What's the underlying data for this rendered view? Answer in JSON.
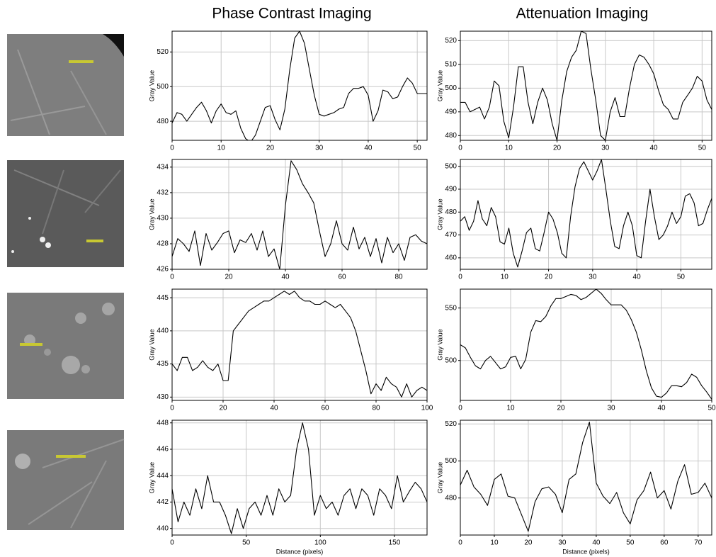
{
  "column_titles": [
    "Phase Contrast Imaging",
    "Attenuation Imaging"
  ],
  "chart_data": [
    {
      "type": "line",
      "y_label": "Gray Value",
      "color": "#000000",
      "grid": true,
      "xlim": [
        0,
        52
      ],
      "ylim": [
        469,
        532
      ],
      "xticks": [
        0,
        10,
        20,
        30,
        40,
        50
      ],
      "yticks": [
        480,
        500,
        520
      ],
      "x": [
        0,
        1,
        2,
        3,
        4,
        5,
        6,
        7,
        8,
        9,
        10,
        11,
        12,
        13,
        14,
        15,
        16,
        17,
        18,
        19,
        20,
        21,
        22,
        23,
        24,
        25,
        26,
        27,
        28,
        29,
        30,
        31,
        32,
        33,
        34,
        35,
        36,
        37,
        38,
        39,
        40,
        41,
        42,
        43,
        44,
        45,
        46,
        47,
        48,
        49,
        50,
        51,
        52
      ],
      "values": [
        479,
        485,
        484,
        480,
        484,
        488,
        491,
        486,
        479,
        486,
        490,
        485,
        484,
        486,
        476,
        470,
        468,
        472,
        480,
        488,
        489,
        481,
        475,
        487,
        510,
        528,
        532,
        525,
        510,
        495,
        484,
        483,
        484,
        485,
        487,
        488,
        496,
        499,
        499,
        500,
        495,
        480,
        486,
        498,
        497,
        493,
        494,
        500,
        505,
        502,
        496,
        496,
        496
      ]
    },
    {
      "type": "line",
      "y_label": "Gray Value",
      "color": "#000000",
      "grid": true,
      "xlim": [
        0,
        52
      ],
      "ylim": [
        478,
        524
      ],
      "xticks": [
        0,
        10,
        20,
        30,
        40,
        50
      ],
      "yticks": [
        480,
        490,
        500,
        510,
        520
      ],
      "x": [
        0,
        1,
        2,
        3,
        4,
        5,
        6,
        7,
        8,
        9,
        10,
        11,
        12,
        13,
        14,
        15,
        16,
        17,
        18,
        19,
        20,
        21,
        22,
        23,
        24,
        25,
        26,
        27,
        28,
        29,
        30,
        31,
        32,
        33,
        34,
        35,
        36,
        37,
        38,
        39,
        40,
        41,
        42,
        43,
        44,
        45,
        46,
        47,
        48,
        49,
        50,
        51,
        52
      ],
      "values": [
        494,
        494,
        490,
        491,
        492,
        487,
        492,
        503,
        501,
        486,
        479,
        492,
        509,
        509,
        494,
        485,
        494,
        500,
        495,
        485,
        478,
        495,
        507,
        513,
        516,
        524,
        523,
        508,
        495,
        480,
        478,
        490,
        496,
        488,
        488,
        500,
        510,
        514,
        513,
        510,
        506,
        499,
        493,
        491,
        487,
        487,
        494,
        497,
        500,
        505,
        503,
        495,
        491
      ]
    },
    {
      "type": "line",
      "y_label": "Gray Value",
      "color": "#000000",
      "grid": true,
      "xlim": [
        0,
        90
      ],
      "ylim": [
        426,
        434.6
      ],
      "xticks": [
        0,
        20,
        40,
        60,
        80
      ],
      "yticks": [
        426,
        428,
        430,
        432,
        434
      ],
      "x": [
        0,
        2,
        4,
        6,
        8,
        10,
        12,
        14,
        16,
        18,
        20,
        22,
        24,
        26,
        28,
        30,
        32,
        34,
        36,
        38,
        40,
        42,
        44,
        46,
        48,
        50,
        52,
        54,
        56,
        58,
        60,
        62,
        64,
        66,
        68,
        70,
        72,
        74,
        76,
        78,
        80,
        82,
        84,
        86,
        88,
        90
      ],
      "values": [
        427,
        428.4,
        428,
        427.4,
        429,
        426.3,
        428.8,
        427.5,
        428.1,
        428.8,
        429,
        427.3,
        428.3,
        428.1,
        428.8,
        427.5,
        429,
        427,
        427.6,
        426,
        431,
        434.5,
        433.8,
        432.7,
        432,
        431.2,
        429,
        427,
        428,
        429.8,
        428,
        427.5,
        429.3,
        427.6,
        428.5,
        427,
        428.4,
        426.5,
        428.5,
        427.3,
        428,
        426.7,
        428.5,
        428.7,
        428.2,
        428
      ]
    },
    {
      "type": "line",
      "y_label": "Gray Value",
      "color": "#000000",
      "grid": true,
      "xlim": [
        0,
        57
      ],
      "ylim": [
        455,
        503
      ],
      "xticks": [
        0,
        10,
        20,
        30,
        40,
        50
      ],
      "yticks": [
        460,
        470,
        480,
        490,
        500
      ],
      "x": [
        0,
        1,
        2,
        3,
        4,
        5,
        6,
        7,
        8,
        9,
        10,
        11,
        12,
        13,
        14,
        15,
        16,
        17,
        18,
        19,
        20,
        21,
        22,
        23,
        24,
        25,
        26,
        27,
        28,
        29,
        30,
        31,
        32,
        33,
        34,
        35,
        36,
        37,
        38,
        39,
        40,
        41,
        42,
        43,
        44,
        45,
        46,
        47,
        48,
        49,
        50,
        51,
        52,
        53,
        54,
        55,
        56,
        57
      ],
      "values": [
        476,
        478,
        472,
        476,
        485,
        477,
        474,
        482,
        478,
        467,
        466,
        473,
        462,
        456,
        463,
        471,
        473,
        464,
        463,
        471,
        480,
        477,
        471,
        462,
        460,
        478,
        491,
        499,
        502,
        498,
        494,
        498,
        503,
        490,
        476,
        465,
        464,
        474,
        480,
        474,
        461,
        460,
        476,
        490,
        478,
        468,
        470,
        474,
        480,
        475,
        478,
        487,
        488,
        484,
        474,
        475,
        481,
        486
      ]
    },
    {
      "type": "line",
      "y_label": "Gray Value",
      "color": "#000000",
      "grid": true,
      "xlim": [
        0,
        100
      ],
      "ylim": [
        429.5,
        446.3
      ],
      "xticks": [
        0,
        20,
        40,
        60,
        80,
        100
      ],
      "yticks": [
        430,
        435,
        440,
        445
      ],
      "x": [
        0,
        2,
        4,
        6,
        8,
        10,
        12,
        14,
        16,
        18,
        20,
        22,
        24,
        26,
        28,
        30,
        32,
        34,
        36,
        38,
        40,
        42,
        44,
        46,
        48,
        50,
        52,
        54,
        56,
        58,
        60,
        62,
        64,
        66,
        68,
        70,
        72,
        74,
        76,
        78,
        80,
        82,
        84,
        86,
        88,
        90,
        92,
        94,
        96,
        98,
        100
      ],
      "values": [
        435,
        434,
        436,
        436,
        434,
        434.5,
        435.5,
        434.5,
        434,
        435,
        432.5,
        432.5,
        440,
        441,
        442,
        443,
        443.5,
        444,
        444.5,
        444.5,
        445,
        445.5,
        446,
        445.5,
        446,
        445,
        444.5,
        444.5,
        444,
        444,
        444.5,
        444,
        443.5,
        444,
        443,
        442,
        440,
        437,
        434,
        430.5,
        432,
        431,
        433,
        432,
        431.5,
        430,
        432,
        430,
        431,
        431.5,
        431
      ]
    },
    {
      "type": "line",
      "y_label": "Gray Value",
      "color": "#000000",
      "grid": true,
      "xlim": [
        0,
        50
      ],
      "ylim": [
        462,
        568
      ],
      "xticks": [
        0,
        10,
        20,
        30,
        40,
        50
      ],
      "yticks": [
        500,
        550
      ],
      "x": [
        0,
        1,
        2,
        3,
        4,
        5,
        6,
        7,
        8,
        9,
        10,
        11,
        12,
        13,
        14,
        15,
        16,
        17,
        18,
        19,
        20,
        21,
        22,
        23,
        24,
        25,
        26,
        27,
        28,
        29,
        30,
        31,
        32,
        33,
        34,
        35,
        36,
        37,
        38,
        39,
        40,
        41,
        42,
        43,
        44,
        45,
        46,
        47,
        48,
        49,
        50
      ],
      "values": [
        515,
        512,
        503,
        495,
        492,
        500,
        504,
        498,
        492,
        494,
        503,
        504,
        492,
        501,
        527,
        538,
        537,
        542,
        552,
        559,
        559,
        561,
        563,
        562,
        558,
        560,
        564,
        568,
        564,
        558,
        553,
        553,
        553,
        548,
        539,
        527,
        510,
        490,
        474,
        466,
        465,
        469,
        476,
        476,
        475,
        479,
        487,
        484,
        476,
        470,
        463
      ]
    },
    {
      "type": "line",
      "y_label": "Gray Value",
      "x_label": "Distance (pixels)",
      "color": "#000000",
      "grid": true,
      "xlim": [
        0,
        172
      ],
      "ylim": [
        439.5,
        448.2
      ],
      "xticks": [
        0,
        50,
        100,
        150
      ],
      "yticks": [
        440,
        442,
        444,
        446,
        448
      ],
      "x": [
        0,
        4,
        8,
        12,
        16,
        20,
        24,
        28,
        32,
        36,
        40,
        44,
        48,
        52,
        56,
        60,
        64,
        68,
        72,
        76,
        80,
        84,
        88,
        92,
        96,
        100,
        104,
        108,
        112,
        116,
        120,
        124,
        128,
        132,
        136,
        140,
        144,
        148,
        152,
        156,
        160,
        164,
        168,
        172
      ],
      "values": [
        443,
        440.5,
        442,
        441,
        443,
        441.5,
        444,
        442,
        442,
        441,
        439.6,
        441.5,
        440,
        441.5,
        442,
        441,
        442.5,
        441,
        443,
        442,
        442.5,
        446,
        448,
        446,
        441,
        442.5,
        441.5,
        442,
        441,
        442.5,
        443,
        441.5,
        443,
        442.5,
        441,
        443,
        442.5,
        441.5,
        444,
        442,
        442.8,
        443.5,
        443,
        442
      ]
    },
    {
      "type": "line",
      "y_label": "Gray Value",
      "x_label": "Distance (pixels)",
      "color": "#000000",
      "grid": true,
      "xlim": [
        0,
        74
      ],
      "ylim": [
        460,
        522
      ],
      "xticks": [
        0,
        10,
        20,
        30,
        40,
        50,
        60,
        70
      ],
      "yticks": [
        480,
        500,
        520
      ],
      "x": [
        0,
        2,
        4,
        6,
        8,
        10,
        12,
        14,
        16,
        18,
        20,
        22,
        24,
        26,
        28,
        30,
        32,
        34,
        36,
        38,
        40,
        42,
        44,
        46,
        48,
        50,
        52,
        54,
        56,
        58,
        60,
        62,
        64,
        66,
        68,
        70,
        72,
        74
      ],
      "values": [
        487,
        495,
        486,
        482,
        476,
        490,
        493,
        481,
        480,
        471,
        462,
        478,
        485,
        486,
        482,
        472,
        490,
        493,
        510,
        521,
        488,
        481,
        477,
        483,
        472,
        466,
        479,
        484,
        494,
        480,
        484,
        474,
        489,
        498,
        482,
        483,
        488,
        480
      ]
    }
  ]
}
